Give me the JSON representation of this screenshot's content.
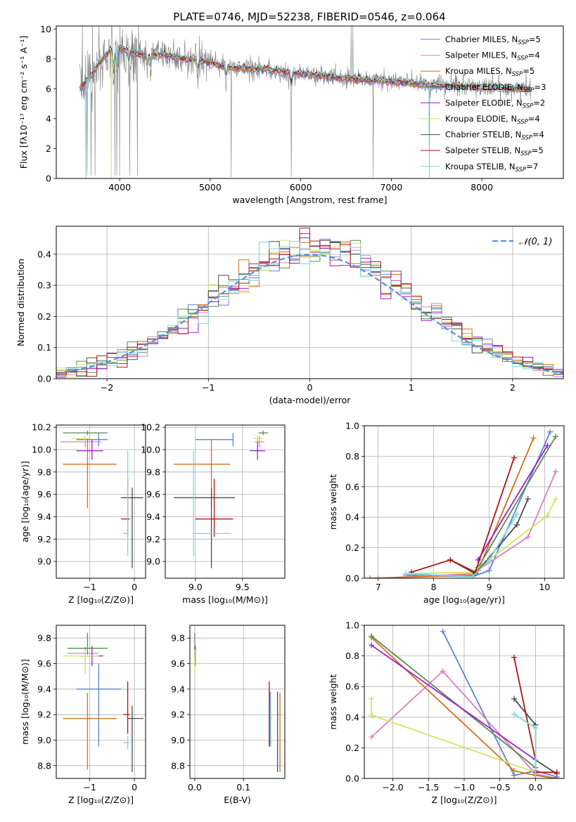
{
  "figure": {
    "title": "PLATE=0746, MJD=52238, FIBERID=0546, z=0.064",
    "model_colors": [
      "#5b84d6",
      "#e07fbf",
      "#d46f1a",
      "#5a8a50",
      "#9a20c8",
      "#cfe65a",
      "#4d4d4d",
      "#b01616",
      "#79d8dc"
    ]
  },
  "chart_data": [
    {
      "id": "spectrum",
      "type": "line",
      "title": "PLATE=0746, MJD=52238, FIBERID=0546, z=0.064",
      "xlabel": "wavelength [Angstrom, rest frame]",
      "ylabel": "Flux [fλ10⁻¹⁷ erg cm⁻² s⁻¹ A⁻¹]",
      "xlim": [
        3300,
        8900
      ],
      "ylim": [
        0,
        10.2
      ],
      "xticks": [
        4000,
        5000,
        6000,
        7000,
        8000
      ],
      "yticks": [
        0,
        2,
        4,
        6,
        8,
        10
      ],
      "legend_position": "top-right",
      "data_color": "#808080",
      "legend": [
        {
          "name": "Chabrier MILES",
          "n": "5",
          "color": "#5b84d6"
        },
        {
          "name": "Salpeter MILES",
          "n": "4",
          "color": "#e07fbf"
        },
        {
          "name": "Kroupa MILES",
          "n": "5",
          "color": "#d46f1a"
        },
        {
          "name": "Chabrier ELODIE",
          "n": "3",
          "color": "#5a8a50"
        },
        {
          "name": "Salpeter ELODIE",
          "n": "2",
          "color": "#9a20c8"
        },
        {
          "name": "Kroupa ELODIE",
          "n": "4",
          "color": "#cfe65a"
        },
        {
          "name": "Chabrier STELIB",
          "n": "4",
          "color": "#4d4d4d"
        },
        {
          "name": "Salpeter STELIB",
          "n": "5",
          "color": "#b01616"
        },
        {
          "name": "Kroupa STELIB",
          "n": "7",
          "color": "#79d8dc"
        }
      ],
      "continuum": {
        "x": [
          3550,
          3650,
          3800,
          3900,
          4000,
          4100,
          4300,
          4500,
          4700,
          4900,
          5200,
          5600,
          6000,
          6500,
          7000,
          7500,
          8000,
          8500
        ],
        "y": [
          6.0,
          6.6,
          7.9,
          8.6,
          8.7,
          8.5,
          8.2,
          8.3,
          8.0,
          7.9,
          7.4,
          7.3,
          7.0,
          6.7,
          6.5,
          6.2,
          6.1,
          6.0
        ]
      }
    },
    {
      "id": "residuals",
      "type": "histogram",
      "xlabel": "(data-model)/error",
      "ylabel": "Normed distribution",
      "xlim": [
        -2.5,
        2.5
      ],
      "ylim": [
        0,
        0.49
      ],
      "xticks": [
        -2,
        -1,
        0,
        1,
        2
      ],
      "yticks": [
        0.0,
        0.1,
        0.2,
        0.3,
        0.4
      ],
      "bin_width": 0.1,
      "gaussian_label": "𝒩(0, 1)",
      "gaussian_color": "#5b8fd6",
      "legend_position": "top-right"
    },
    {
      "id": "age_vs_Z",
      "type": "errorbar",
      "xlabel": "Z [log₁₀(Z/Z⊙)]",
      "ylabel": "age  [log₁₀(age/yr)]",
      "xlim": [
        -1.75,
        0.25
      ],
      "ylim": [
        8.85,
        10.22
      ],
      "xticks": [
        -1,
        0
      ],
      "yticks": [
        9.0,
        9.2,
        9.4,
        9.6,
        9.8,
        10.0,
        10.2
      ],
      "points": [
        {
          "x": -0.8,
          "y": 10.09,
          "xerr": [
            0.5,
            0.2
          ],
          "yerr": [
            0.06,
            0.06
          ],
          "color": "#5b84d6"
        },
        {
          "x": -1.1,
          "y": 10.07,
          "xerr": [
            0.55,
            0.35
          ],
          "yerr": [
            0.05,
            0.05
          ],
          "color": "#e07fbf"
        },
        {
          "x": -1.05,
          "y": 9.87,
          "xerr": [
            0.55,
            0.65
          ],
          "yerr": [
            0.39,
            0.22
          ],
          "color": "#d46f1a"
        },
        {
          "x": -1.05,
          "y": 10.15,
          "xerr": [
            0.55,
            0.45
          ],
          "yerr": [
            0.02,
            0.02
          ],
          "color": "#5a8a50"
        },
        {
          "x": -0.95,
          "y": 9.99,
          "xerr": [
            0.35,
            0.25
          ],
          "yerr": [
            0.08,
            0.1
          ],
          "color": "#9a20c8"
        },
        {
          "x": -1.1,
          "y": 10.1,
          "xerr": [
            0.3,
            0.1
          ],
          "yerr": [
            0.03,
            0.03
          ],
          "color": "#cfe65a"
        },
        {
          "x": -0.05,
          "y": 9.57,
          "xerr": [
            0.25,
            0.25
          ],
          "yerr": [
            0.63,
            0.09
          ],
          "color": "#4d4d4d"
        },
        {
          "x": -0.15,
          "y": 9.38,
          "xerr": [
            0.15,
            0.05
          ],
          "yerr": [
            0.16,
            0.36
          ],
          "color": "#b01616"
        },
        {
          "x": -0.15,
          "y": 9.25,
          "xerr": [
            0.1,
            0.02
          ],
          "yerr": [
            0.2,
            0.74
          ],
          "color": "#79d8dc"
        }
      ]
    },
    {
      "id": "age_vs_mass",
      "type": "errorbar",
      "xlabel": "mass [log₁₀(M/M⊙)]",
      "ylabel": "",
      "xlim": [
        8.68,
        9.95
      ],
      "ylim": [
        8.85,
        10.22
      ],
      "xticks": [
        9.0,
        9.5
      ],
      "yticks": [
        9.0,
        9.2,
        9.4,
        9.6,
        9.8,
        10.0,
        10.2
      ],
      "points": [
        {
          "x": 9.4,
          "y": 10.09,
          "xerr": [
            0.4,
            0.0
          ],
          "yerr": [
            0.06,
            0.06
          ],
          "color": "#5b84d6"
        },
        {
          "x": 9.68,
          "y": 10.07,
          "xerr": [
            0.05,
            0.05
          ],
          "yerr": [
            0.05,
            0.05
          ],
          "color": "#e07fbf"
        },
        {
          "x": 9.17,
          "y": 9.87,
          "xerr": [
            0.4,
            0.2
          ],
          "yerr": [
            0.39,
            0.22
          ],
          "color": "#d46f1a"
        },
        {
          "x": 9.72,
          "y": 10.15,
          "xerr": [
            0.05,
            0.05
          ],
          "yerr": [
            0.02,
            0.02
          ],
          "color": "#5a8a50"
        },
        {
          "x": 9.66,
          "y": 9.99,
          "xerr": [
            0.08,
            0.08
          ],
          "yerr": [
            0.08,
            0.1
          ],
          "color": "#9a20c8"
        },
        {
          "x": 9.66,
          "y": 10.1,
          "xerr": [
            0.05,
            0.05
          ],
          "yerr": [
            0.03,
            0.03
          ],
          "color": "#cfe65a"
        },
        {
          "x": 9.17,
          "y": 9.57,
          "xerr": [
            0.4,
            0.25
          ],
          "yerr": [
            0.63,
            0.09
          ],
          "color": "#4d4d4d"
        },
        {
          "x": 9.2,
          "y": 9.38,
          "xerr": [
            0.2,
            0.2
          ],
          "yerr": [
            0.16,
            0.36
          ],
          "color": "#b01616"
        },
        {
          "x": 8.98,
          "y": 9.25,
          "xerr": [
            0.0,
            0.4
          ],
          "yerr": [
            0.2,
            0.74
          ],
          "color": "#79d8dc"
        }
      ]
    },
    {
      "id": "weight_vs_age",
      "type": "line",
      "xlabel": "age  [log₁₀(age/yr)]",
      "ylabel": "mass weight",
      "xlim": [
        6.75,
        10.35
      ],
      "ylim": [
        0,
        1.0
      ],
      "xticks": [
        7,
        8,
        9,
        10
      ],
      "yticks": [
        0.0,
        0.2,
        0.4,
        0.6,
        0.8,
        1.0
      ],
      "series": [
        {
          "color": "#5b84d6",
          "x": [
            7.5,
            8.7,
            9.0,
            10.1
          ],
          "y": [
            0.02,
            0.01,
            0.05,
            0.96
          ]
        },
        {
          "color": "#e07fbf",
          "x": [
            7.0,
            8.7,
            9.7,
            10.2
          ],
          "y": [
            0.0,
            0.03,
            0.27,
            0.7
          ]
        },
        {
          "color": "#d46f1a",
          "x": [
            6.85,
            8.7,
            8.8,
            9.8
          ],
          "y": [
            0.0,
            0.02,
            0.05,
            0.92
          ]
        },
        {
          "color": "#5a8a50",
          "x": [
            8.8,
            10.2
          ],
          "y": [
            0.07,
            0.93
          ]
        },
        {
          "color": "#9a20c8",
          "x": [
            8.8,
            10.05
          ],
          "y": [
            0.12,
            0.87
          ]
        },
        {
          "color": "#cfe65a",
          "x": [
            7.6,
            8.7,
            10.05,
            10.2
          ],
          "y": [
            0.03,
            0.04,
            0.41,
            0.52
          ]
        },
        {
          "color": "#4d4d4d",
          "x": [
            8.3,
            8.75,
            9.5,
            9.7
          ],
          "y": [
            0.12,
            0.03,
            0.35,
            0.52
          ]
        },
        {
          "color": "#b01616",
          "x": [
            7.6,
            8.3,
            8.75,
            9.45
          ],
          "y": [
            0.04,
            0.12,
            0.04,
            0.79
          ]
        },
        {
          "color": "#79d8dc",
          "x": [
            7.5,
            8.7,
            9.0,
            9.5
          ],
          "y": [
            0.03,
            0.01,
            0.12,
            0.42
          ]
        }
      ]
    },
    {
      "id": "mass_vs_Z",
      "type": "errorbar",
      "xlabel": "Z [log₁₀(Z/Z⊙)]",
      "ylabel": "mass [log₁₀(M/M⊙)]",
      "xlim": [
        -1.75,
        0.25
      ],
      "ylim": [
        8.7,
        9.9
      ],
      "xticks": [
        -1,
        0
      ],
      "yticks": [
        8.8,
        9.0,
        9.2,
        9.4,
        9.6,
        9.8
      ],
      "points": [
        {
          "x": -0.8,
          "y": 9.4,
          "xerr": [
            0.5,
            0.5
          ],
          "yerr": [
            0.45,
            0.2
          ],
          "color": "#5b84d6"
        },
        {
          "x": -1.1,
          "y": 9.68,
          "xerr": [
            0.4,
            0.3
          ],
          "yerr": [
            0.05,
            0.05
          ],
          "color": "#e07fbf"
        },
        {
          "x": -1.05,
          "y": 9.17,
          "xerr": [
            0.55,
            0.65
          ],
          "yerr": [
            0.4,
            0.2
          ],
          "color": "#d46f1a"
        },
        {
          "x": -1.05,
          "y": 9.72,
          "xerr": [
            0.45,
            0.45
          ],
          "yerr": [
            0.05,
            0.12
          ],
          "color": "#5a8a50"
        },
        {
          "x": -0.95,
          "y": 9.66,
          "xerr": [
            0.3,
            0.25
          ],
          "yerr": [
            0.08,
            0.08
          ],
          "color": "#9a20c8"
        },
        {
          "x": -1.1,
          "y": 9.66,
          "xerr": [
            0.5,
            0.3
          ],
          "yerr": [
            0.14,
            0.05
          ],
          "color": "#cfe65a"
        },
        {
          "x": -0.05,
          "y": 9.17,
          "xerr": [
            0.1,
            0.25
          ],
          "yerr": [
            0.42,
            0.1
          ],
          "color": "#4d4d4d"
        },
        {
          "x": -0.15,
          "y": 9.2,
          "xerr": [
            0.1,
            0.05
          ],
          "yerr": [
            0.15,
            0.26
          ],
          "color": "#b01616"
        },
        {
          "x": -0.15,
          "y": 8.98,
          "xerr": [
            0.1,
            0.05
          ],
          "yerr": [
            0.05,
            0.05
          ],
          "color": "#79d8dc"
        }
      ]
    },
    {
      "id": "mass_vs_EBV",
      "type": "errorbar",
      "xlabel": "E(B-V)",
      "ylabel": "",
      "xlim": [
        -0.01,
        0.185
      ],
      "ylim": [
        8.7,
        9.9
      ],
      "xticks": [
        0.0,
        0.1
      ],
      "yticks": [
        8.8,
        9.0,
        9.2,
        9.4,
        9.6,
        9.8
      ],
      "points": [
        {
          "x": 0.155,
          "y": 9.2,
          "xerr": [
            0,
            0
          ],
          "yerr": [
            0.25,
            0.18
          ],
          "color": "#5b84d6"
        },
        {
          "x": 0.0,
          "y": 9.68,
          "xerr": [
            0,
            0
          ],
          "yerr": [
            0.05,
            0.05
          ],
          "color": "#e07fbf"
        },
        {
          "x": 0.175,
          "y": 9.17,
          "xerr": [
            0,
            0
          ],
          "yerr": [
            0.42,
            0.2
          ],
          "color": "#d46f1a"
        },
        {
          "x": 0.0,
          "y": 9.72,
          "xerr": [
            0,
            0
          ],
          "yerr": [
            0.05,
            0.12
          ],
          "color": "#5a8a50"
        },
        {
          "x": 0.001,
          "y": 9.66,
          "xerr": [
            0,
            0
          ],
          "yerr": [
            0.08,
            0.08
          ],
          "color": "#9a20c8"
        },
        {
          "x": 0.0,
          "y": 9.66,
          "xerr": [
            0,
            0
          ],
          "yerr": [
            0.14,
            0.05
          ],
          "color": "#cfe65a"
        },
        {
          "x": 0.17,
          "y": 9.1,
          "xerr": [
            0,
            0
          ],
          "yerr": [
            0.35,
            0.28
          ],
          "color": "#4d4d4d"
        },
        {
          "x": 0.153,
          "y": 9.2,
          "xerr": [
            0,
            0
          ],
          "yerr": [
            0.25,
            0.26
          ],
          "color": "#b01616"
        },
        {
          "x": 0.156,
          "y": 9.0,
          "xerr": [
            0,
            0
          ],
          "yerr": [
            0.05,
            0.3
          ],
          "color": "#79d8dc"
        }
      ]
    },
    {
      "id": "weight_vs_Z",
      "type": "line",
      "xlabel": "Z [log₁₀(Z/Z⊙)]",
      "ylabel": "mass weight",
      "xlim": [
        -2.4,
        0.4
      ],
      "ylim": [
        0,
        1.0
      ],
      "xticks": [
        -2.0,
        -1.5,
        -1.0,
        -0.5,
        0.0
      ],
      "yticks": [
        0.0,
        0.2,
        0.4,
        0.6,
        0.8,
        1.0
      ],
      "series": [
        {
          "color": "#5b84d6",
          "x": [
            -1.3,
            -0.3,
            0.0,
            0.3
          ],
          "y": [
            0.96,
            0.02,
            0.05,
            0.01
          ]
        },
        {
          "color": "#e07fbf",
          "x": [
            -2.3,
            -1.3,
            0.0,
            0.3
          ],
          "y": [
            0.27,
            0.7,
            0.03,
            0.0
          ]
        },
        {
          "color": "#d46f1a",
          "x": [
            -2.3,
            -0.3,
            0.0,
            0.3
          ],
          "y": [
            0.92,
            0.05,
            0.02,
            0.0
          ]
        },
        {
          "color": "#5a8a50",
          "x": [
            -2.3,
            0.0
          ],
          "y": [
            0.93,
            0.07
          ]
        },
        {
          "color": "#9a20c8",
          "x": [
            -2.3,
            0.0
          ],
          "y": [
            0.87,
            0.12
          ]
        },
        {
          "color": "#cfe65a",
          "x": [
            -2.3,
            -2.3,
            -2.28,
            0.0
          ],
          "y": [
            0.52,
            0.41,
            0.41,
            0.04
          ]
        },
        {
          "color": "#4d4d4d",
          "x": [
            -0.3,
            0.0,
            0.0,
            0.3
          ],
          "y": [
            0.52,
            0.35,
            0.12,
            0.03
          ]
        },
        {
          "color": "#b01616",
          "x": [
            -0.3,
            0.0,
            0.0,
            0.3
          ],
          "y": [
            0.79,
            0.12,
            0.04,
            0.04
          ]
        },
        {
          "color": "#79d8dc",
          "x": [
            -0.3,
            0.0,
            0.0,
            0.0
          ],
          "y": [
            0.42,
            0.33,
            0.12,
            0.03
          ]
        }
      ]
    }
  ]
}
